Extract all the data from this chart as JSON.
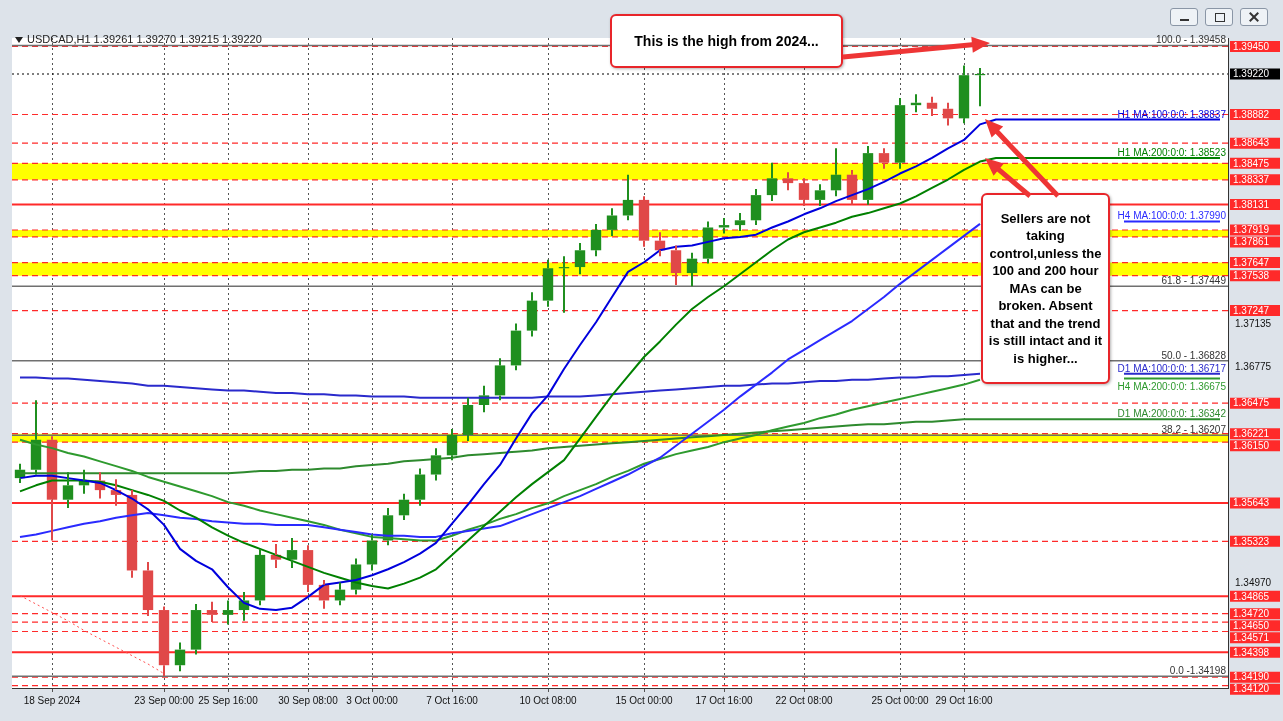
{
  "chart_data": {
    "type": "candlestick",
    "title": "USDCAD,H1 1.39261 1.39270 1.39215 1.39220",
    "categories": [
      null,
      null,
      "18 Sep 2024",
      null,
      null,
      null,
      null,
      null,
      null,
      "23 Sep 00:00",
      null,
      null,
      null,
      "25 Sep 16:00",
      null,
      null,
      null,
      null,
      "30 Sep 08:00",
      null,
      null,
      null,
      "3 Oct 00:00",
      null,
      null,
      null,
      null,
      "7 Oct 16:00",
      null,
      null,
      null,
      null,
      null,
      "10 Oct 08:00",
      null,
      null,
      null,
      null,
      null,
      "15 Oct 00:00",
      null,
      null,
      null,
      null,
      "17 Oct 16:00",
      null,
      null,
      null,
      null,
      "22 Oct 08:00",
      null,
      null,
      null,
      null,
      null,
      "25 Oct 00:00",
      null,
      null,
      null,
      "29 Oct 16:00",
      null,
      null,
      null,
      null,
      null,
      null,
      null,
      null,
      null,
      null,
      null,
      null,
      null,
      null,
      null,
      null
    ],
    "ohlc": [
      [
        1.3585,
        1.3597,
        1.3581,
        1.3592
      ],
      [
        1.3592,
        1.365,
        1.3588,
        1.3617
      ],
      [
        1.3617,
        1.362,
        1.3533,
        1.3567
      ],
      [
        1.3567,
        1.359,
        1.356,
        1.3579
      ],
      [
        1.3579,
        1.3592,
        1.3572,
        1.3583
      ],
      [
        1.3583,
        1.359,
        1.3568,
        1.3575
      ],
      [
        1.3575,
        1.3584,
        1.3562,
        1.3571
      ],
      [
        1.3571,
        1.3575,
        1.3502,
        1.3508
      ],
      [
        1.3508,
        1.3515,
        1.347,
        1.3475
      ],
      [
        1.3475,
        1.3478,
        1.342,
        1.3429
      ],
      [
        1.3429,
        1.3448,
        1.3424,
        1.3442
      ],
      [
        1.3442,
        1.348,
        1.3438,
        1.3475
      ],
      [
        1.3475,
        1.3482,
        1.3465,
        1.3471
      ],
      [
        1.3471,
        1.3483,
        1.3463,
        1.3475
      ],
      [
        1.3475,
        1.349,
        1.3466,
        1.3483
      ],
      [
        1.3483,
        1.3526,
        1.3479,
        1.3521
      ],
      [
        1.3521,
        1.353,
        1.351,
        1.3517
      ],
      [
        1.3517,
        1.3535,
        1.351,
        1.3525
      ],
      [
        1.3525,
        1.3529,
        1.349,
        1.3496
      ],
      [
        1.3496,
        1.35,
        1.3476,
        1.3483
      ],
      [
        1.3483,
        1.3498,
        1.3479,
        1.3492
      ],
      [
        1.3492,
        1.3518,
        1.3488,
        1.3513
      ],
      [
        1.3513,
        1.3538,
        1.3508,
        1.3533
      ],
      [
        1.3533,
        1.356,
        1.3529,
        1.3554
      ],
      [
        1.3554,
        1.3572,
        1.355,
        1.3567
      ],
      [
        1.3567,
        1.3593,
        1.3562,
        1.3588
      ],
      [
        1.3588,
        1.361,
        1.3583,
        1.3604
      ],
      [
        1.3604,
        1.3626,
        1.36,
        1.3621
      ],
      [
        1.3621,
        1.3652,
        1.3616,
        1.3646
      ],
      [
        1.3646,
        1.3662,
        1.364,
        1.3654
      ],
      [
        1.3654,
        1.3685,
        1.365,
        1.3679
      ],
      [
        1.3679,
        1.3714,
        1.3675,
        1.3708
      ],
      [
        1.3708,
        1.374,
        1.3703,
        1.3733
      ],
      [
        1.3733,
        1.3767,
        1.3728,
        1.376
      ],
      [
        1.376,
        1.377,
        1.3723,
        1.3761
      ],
      [
        1.3761,
        1.3781,
        1.3755,
        1.3775
      ],
      [
        1.3775,
        1.3797,
        1.377,
        1.3792
      ],
      [
        1.3792,
        1.381,
        1.3787,
        1.3804
      ],
      [
        1.3804,
        1.3838,
        1.38,
        1.3817
      ],
      [
        1.3817,
        1.382,
        1.3778,
        1.3783
      ],
      [
        1.3783,
        1.379,
        1.377,
        1.3775
      ],
      [
        1.3775,
        1.3779,
        1.3746,
        1.3756
      ],
      [
        1.3756,
        1.3773,
        1.3745,
        1.3768
      ],
      [
        1.3768,
        1.3799,
        1.3764,
        1.3794
      ],
      [
        1.3794,
        1.3802,
        1.3789,
        1.3796
      ],
      [
        1.3796,
        1.3806,
        1.3791,
        1.38
      ],
      [
        1.38,
        1.3826,
        1.3796,
        1.3821
      ],
      [
        1.3821,
        1.3848,
        1.3816,
        1.3835
      ],
      [
        1.3835,
        1.384,
        1.3825,
        1.3831
      ],
      [
        1.3831,
        1.3835,
        1.3812,
        1.3817
      ],
      [
        1.3817,
        1.383,
        1.3812,
        1.3825
      ],
      [
        1.3825,
        1.386,
        1.382,
        1.3838
      ],
      [
        1.3838,
        1.3842,
        1.3813,
        1.3817
      ],
      [
        1.3817,
        1.3862,
        1.3813,
        1.3856
      ],
      [
        1.3856,
        1.386,
        1.3843,
        1.3848
      ],
      [
        1.3848,
        1.3902,
        1.3843,
        1.3896
      ],
      [
        1.3896,
        1.3905,
        1.389,
        1.3898
      ],
      [
        1.3898,
        1.3903,
        1.3887,
        1.3893
      ],
      [
        1.3893,
        1.3898,
        1.3879,
        1.3885
      ],
      [
        1.3885,
        1.3929,
        1.3881,
        1.3921
      ],
      [
        1.3921,
        1.3927,
        1.3895,
        1.3922
      ],
      null,
      null,
      null,
      null,
      null,
      null,
      null,
      null,
      null,
      null,
      null,
      null,
      null,
      null,
      null
    ],
    "series": [
      {
        "name": "H1 MA:100:0:0: 1.38837",
        "type": "line",
        "color": "#0000dd",
        "values": [
          1.3585,
          1.3587,
          1.3587,
          1.3585,
          1.3583,
          1.3581,
          1.3575,
          1.3568,
          1.3559,
          1.3546,
          1.3526,
          1.3516,
          1.3509,
          1.3494,
          1.3481,
          1.3476,
          1.3475,
          1.3477,
          1.3486,
          1.3496,
          1.3498,
          1.35,
          1.3504,
          1.3509,
          1.3515,
          1.3522,
          1.3531,
          1.3547,
          1.3563,
          1.358,
          1.3596,
          1.3618,
          1.3639,
          1.3654,
          1.3676,
          1.3696,
          1.3715,
          1.3736,
          1.3757,
          1.3765,
          1.3775,
          1.3778,
          1.3779,
          1.3782,
          1.3785,
          1.3786,
          1.3788,
          1.3794,
          1.3799,
          1.3805,
          1.381,
          1.3816,
          1.3821,
          1.3826,
          1.3832,
          1.3839,
          1.3845,
          1.3852,
          1.386,
          1.3867,
          1.388,
          1.3884,
          1.3884,
          1.3884,
          1.3884,
          1.3884,
          1.3884,
          1.3884,
          1.3884,
          1.3884,
          1.3884,
          1.3884,
          1.3884,
          1.3884,
          1.3884,
          1.3884
        ]
      },
      {
        "name": "H1 MA:200:0:0: 1.38523",
        "type": "line",
        "color": "#008000",
        "values": [
          1.3574,
          1.3579,
          1.3583,
          1.3583,
          1.3583,
          1.3582,
          1.3579,
          1.3575,
          1.3571,
          1.3566,
          1.3558,
          1.3552,
          1.3544,
          1.3537,
          1.3531,
          1.3526,
          1.3521,
          1.3516,
          1.3511,
          1.3506,
          1.3502,
          1.3498,
          1.3495,
          1.3493,
          1.3497,
          1.3502,
          1.3509,
          1.3521,
          1.3533,
          1.3545,
          1.3557,
          1.3569,
          1.358,
          1.359,
          1.36,
          1.3618,
          1.3636,
          1.3654,
          1.367,
          1.3686,
          1.3699,
          1.3713,
          1.3726,
          1.3736,
          1.3745,
          1.3755,
          1.3765,
          1.3775,
          1.3784,
          1.379,
          1.3794,
          1.3798,
          1.3803,
          1.3806,
          1.381,
          1.3814,
          1.382,
          1.3827,
          1.3834,
          1.3842,
          1.3849,
          1.3852,
          1.3852,
          1.3852,
          1.3852,
          1.3852,
          1.3852,
          1.3852,
          1.3852,
          1.3852,
          1.3852,
          1.3852,
          1.3852,
          1.3852,
          1.3852,
          1.3852
        ]
      },
      {
        "name": "H4 MA:100:0:0: 1.37990",
        "type": "line",
        "color": "#2a2aff",
        "values": [
          1.3536,
          1.3538,
          1.3541,
          1.3544,
          1.3547,
          1.3549,
          1.3552,
          1.3554,
          1.3556,
          1.3554,
          1.3552,
          1.3551,
          1.3549,
          1.3548,
          1.3547,
          1.3547,
          1.3546,
          1.3546,
          1.3546,
          1.3544,
          1.3542,
          1.354,
          1.3538,
          1.3537,
          1.3537,
          1.3536,
          1.3536,
          1.3539,
          1.3541,
          1.3543,
          1.3545,
          1.355,
          1.3555,
          1.356,
          1.3565,
          1.357,
          1.3576,
          1.3582,
          1.3588,
          1.3595,
          1.3602,
          1.3612,
          1.3622,
          1.3632,
          1.3642,
          1.3653,
          1.3663,
          1.3673,
          1.3684,
          1.3692,
          1.37,
          1.3708,
          1.3716,
          1.3726,
          1.3736,
          1.3747,
          1.3757,
          1.3767,
          1.3777,
          1.3787,
          1.3797,
          null,
          null,
          null,
          null,
          null,
          null,
          null,
          null,
          1.3799,
          1.3799,
          1.3799,
          1.3799,
          1.3799,
          1.3799,
          1.3799
        ]
      },
      {
        "name": "D1 MA:100:0:0: 1.36717",
        "type": "line",
        "color": "#2a2acc",
        "values": [
          1.3669,
          1.3669,
          1.3668,
          1.3668,
          1.3667,
          1.3666,
          1.3665,
          1.3664,
          1.3662,
          1.3662,
          1.3661,
          1.366,
          1.3659,
          1.3658,
          1.3658,
          1.3657,
          1.3656,
          1.3656,
          1.3655,
          1.3655,
          1.3654,
          1.3654,
          1.3653,
          1.3653,
          1.3653,
          1.3652,
          1.3652,
          1.3652,
          1.3652,
          1.3652,
          1.3652,
          1.3652,
          1.3652,
          1.3653,
          1.3653,
          1.3653,
          1.3654,
          1.3655,
          1.3656,
          1.3657,
          1.3658,
          1.3659,
          1.366,
          1.3661,
          1.3662,
          1.3662,
          1.3663,
          1.3664,
          1.3664,
          1.3665,
          1.3666,
          1.3666,
          1.3667,
          1.3667,
          1.3668,
          1.3669,
          1.3669,
          1.367,
          1.367,
          1.3671,
          1.3672,
          null,
          null,
          null,
          null,
          null,
          null,
          null,
          null,
          1.3672,
          1.3672,
          1.3672,
          1.3672,
          1.3672,
          1.3672,
          1.3672
        ]
      },
      {
        "name": "H4 MA:200:0:0: 1.36675",
        "type": "line",
        "color": "#2e9a2e",
        "values": [
          1.3617,
          1.3613,
          1.361,
          1.3606,
          1.3603,
          1.3599,
          1.3595,
          1.3591,
          1.3586,
          1.3582,
          1.3578,
          1.3574,
          1.357,
          1.3565,
          1.3562,
          1.3558,
          1.3555,
          1.3552,
          1.3549,
          1.3546,
          1.3542,
          1.3539,
          1.3536,
          1.3535,
          1.3534,
          1.3533,
          1.3533,
          1.3537,
          1.3542,
          1.3546,
          1.3551,
          1.3555,
          1.356,
          1.3564,
          1.357,
          1.3575,
          1.358,
          1.3586,
          1.3591,
          1.3597,
          1.3601,
          1.3605,
          1.3608,
          1.3611,
          1.3615,
          1.3618,
          1.3621,
          1.3625,
          1.3628,
          1.3631,
          1.3635,
          1.3638,
          1.3642,
          1.3645,
          1.3648,
          1.3651,
          1.3654,
          1.3657,
          1.366,
          1.3663,
          1.3667,
          null,
          null,
          null,
          null,
          null,
          null,
          null,
          null,
          1.3668,
          1.3668,
          1.3668,
          1.3668,
          1.3668,
          1.3668,
          1.3668
        ]
      },
      {
        "name": "D1 MA:200:0:0: 1.36342",
        "type": "line",
        "color": "#2e8a2e",
        "values": [
          1.3589,
          1.3589,
          1.3589,
          1.3589,
          1.3589,
          1.3589,
          1.3589,
          1.3589,
          1.3589,
          1.3589,
          1.3589,
          1.3589,
          1.3589,
          1.3589,
          1.359,
          1.3591,
          1.3591,
          1.3592,
          1.3592,
          1.3593,
          1.3593,
          1.3595,
          1.3596,
          1.3597,
          1.3599,
          1.36,
          1.3601,
          1.3602,
          1.3604,
          1.3605,
          1.3606,
          1.3607,
          1.3608,
          1.361,
          1.3611,
          1.3612,
          1.3613,
          1.3614,
          1.3615,
          1.3616,
          1.3617,
          1.3618,
          1.3619,
          1.362,
          1.3621,
          1.3622,
          1.3623,
          1.3624,
          1.3625,
          1.3626,
          1.3627,
          1.3628,
          1.3629,
          1.363,
          1.363,
          1.3631,
          1.3632,
          1.3632,
          1.3633,
          1.3634,
          1.3634,
          1.3634,
          1.3634,
          1.3634,
          1.3634,
          1.3634,
          1.3634,
          1.3634,
          1.3634,
          1.3634,
          1.3634,
          1.3634,
          1.3634,
          1.3634,
          1.3634,
          1.3634
        ]
      },
      {
        "type": "line",
        "color": "#ff5050",
        "line_style": "dotted",
        "values": [
          1.3487,
          1.348,
          1.3473,
          1.3466,
          1.3458,
          1.3451,
          1.3444,
          1.3437,
          1.343,
          1.3422,
          null,
          null,
          null,
          null,
          null,
          null,
          null,
          null,
          null,
          null,
          null,
          null,
          null,
          null,
          null,
          null,
          null,
          null,
          null,
          null,
          null,
          null,
          null,
          null,
          null,
          null,
          null,
          null,
          null,
          null,
          null,
          null,
          null,
          null,
          null,
          null,
          null,
          null,
          null,
          null,
          null,
          null,
          null,
          null,
          null,
          null,
          null,
          null,
          null,
          null,
          null,
          null,
          null,
          null,
          null,
          null,
          null,
          null,
          null,
          null,
          null,
          null,
          null,
          null,
          null,
          null
        ]
      }
    ],
    "ylim": [
      1.341,
      1.3952
    ],
    "yticks": [
      {
        "value": 1.3497,
        "label": "1.34970"
      },
      1.36775,
      1.37135
    ],
    "grid": "x",
    "bands": [
      {
        "axis": "y",
        "from": 1.38337,
        "to": 1.38475,
        "color": "#ffff00"
      },
      {
        "axis": "y",
        "from": 1.37861,
        "to": 1.37919,
        "color": "#ffff00"
      },
      {
        "axis": "y",
        "from": 1.37538,
        "to": 1.37647,
        "color": "#ffff00"
      },
      {
        "axis": "y",
        "from": 1.3615,
        "to": 1.36221,
        "color": "#ffff00"
      }
    ],
    "ref_lines": [
      {
        "axis": "y",
        "value": 1.3945,
        "label": "1.39450",
        "color": "#ff2a2a",
        "line_style": "dashed"
      },
      {
        "axis": "y",
        "value": 1.3922,
        "label": "1.39220",
        "color": "#000000",
        "line_style": "dotted"
      },
      {
        "axis": "y",
        "value": 1.38882,
        "label": "1.38882",
        "color": "#ff2a2a",
        "line_style": "dashed"
      },
      {
        "axis": "y",
        "value": 1.38643,
        "label": "1.38643",
        "color": "#ff2a2a",
        "line_style": "dashed"
      },
      {
        "axis": "y",
        "value": 1.38475,
        "label": "1.38475",
        "color": "#ff2a2a",
        "line_style": "dashed"
      },
      {
        "axis": "y",
        "value": 1.38337,
        "label": "1.38337",
        "color": "#ff2a2a",
        "line_style": "dashed"
      },
      {
        "axis": "y",
        "value": 1.38131,
        "label": "1.38131",
        "color": "#ff2a2a",
        "line_style": "solid"
      },
      {
        "axis": "y",
        "value": 1.37919,
        "label": "1.37919",
        "color": "#ff2a2a",
        "line_style": "dashed"
      },
      {
        "axis": "y",
        "value": 1.37861,
        "label": "1.37861",
        "color": "#ff2a2a",
        "line_style": "dashed"
      },
      {
        "axis": "y",
        "value": 1.37647,
        "label": "1.37647",
        "color": "#ff2a2a",
        "line_style": "dashed"
      },
      {
        "axis": "y",
        "value": 1.37538,
        "label": "1.37538",
        "color": "#ff2a2a",
        "line_style": "dashed"
      },
      {
        "axis": "y",
        "value": 1.37247,
        "label": "1.37247",
        "color": "#ff2a2a",
        "line_style": "dashed"
      },
      {
        "axis": "y",
        "value": 1.36475,
        "label": "1.36475",
        "color": "#ff2a2a",
        "line_style": "dashed"
      },
      {
        "axis": "y",
        "value": 1.36221,
        "label": "1.36221",
        "color": "#ff2a2a",
        "line_style": "dashed"
      },
      {
        "axis": "y",
        "value": 1.3615,
        "label": "1.36150",
        "color": "#ff2a2a",
        "line_style": "dashed"
      },
      {
        "axis": "y",
        "value": 1.35643,
        "label": "1.35643",
        "color": "#ff2a2a",
        "line_style": "solid"
      },
      {
        "axis": "y",
        "value": 1.35323,
        "label": "1.35323",
        "color": "#ff2a2a",
        "line_style": "dashed"
      },
      {
        "axis": "y",
        "value": 1.34865,
        "label": "1.34865",
        "color": "#ff2a2a",
        "line_style": "solid"
      },
      {
        "axis": "y",
        "value": 1.3472,
        "label": "1.34720",
        "color": "#ff2a2a",
        "line_style": "dashed"
      },
      {
        "axis": "y",
        "value": 1.3465,
        "label": "1.34650",
        "color": "#ff2a2a",
        "line_style": "dashed"
      },
      {
        "axis": "y",
        "value": 1.34571,
        "label": "1.34571",
        "color": "#ff2a2a",
        "line_style": "dashed"
      },
      {
        "axis": "y",
        "value": 1.34398,
        "label": "1.34398",
        "color": "#ff2a2a",
        "line_style": "solid"
      },
      {
        "axis": "y",
        "value": 1.3419,
        "label": "1.34190",
        "color": "#ff2a2a",
        "line_style": "dashed"
      },
      {
        "axis": "y",
        "value": 1.3412,
        "label": "1.34120",
        "color": "#ff2a2a",
        "line_style": "dashed"
      },
      {
        "axis": "y",
        "value": 1.39458,
        "color": "#707070",
        "line_style": "solid"
      },
      {
        "axis": "y",
        "value": 1.37449,
        "color": "#707070",
        "line_style": "solid"
      },
      {
        "axis": "y",
        "value": 1.36828,
        "color": "#707070",
        "line_style": "solid"
      },
      {
        "axis": "y",
        "value": 1.36207,
        "color": "#707070",
        "line_style": "solid"
      },
      {
        "axis": "y",
        "value": 1.34198,
        "color": "#707070",
        "line_style": "solid"
      }
    ],
    "annotations": [
      "This is the high from 2024...",
      "Sellers are not taking control,unless the 100 and 200 hour MAs can be broken. Absent that and the trend is still intact and it is higher...",
      {
        "text": "100.0 - 1.39458",
        "y": 1.39458
      },
      {
        "text": "61.8 - 1.37449",
        "y": 1.37449
      },
      {
        "text": "50.0 - 1.36828",
        "y": 1.36828
      },
      {
        "text": "38.2 - 1.36207",
        "y": 1.36207
      },
      {
        "text": "0.0 -1.34198",
        "y": 1.34198
      }
    ]
  }
}
